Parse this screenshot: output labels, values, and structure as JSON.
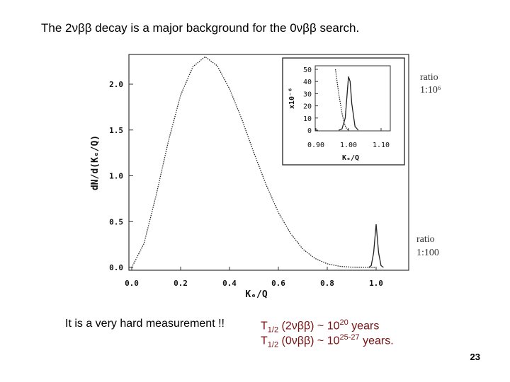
{
  "slide": {
    "title": "The 2νββ decay is a major background for the 0νββ search.",
    "note": "It is a very hard measurement !!",
    "half_life_2v": {
      "prefix": "T",
      "sub": "1/2",
      "mid": " (2νββ) ~ 10",
      "sup": "20",
      "suffix": " years"
    },
    "half_life_0v": {
      "prefix": "T",
      "sub": "1/2",
      "mid": " (0νββ) ~ 10",
      "sup": "25-27",
      "suffix": " years."
    },
    "page_number": "23"
  },
  "chart_data": [
    {
      "type": "line",
      "xlabel": "Kₑ/Q",
      "ylabel": "dN/d(Kₑ/Q)",
      "xlim": [
        0.0,
        1.1
      ],
      "ylim": [
        0.0,
        2.3
      ],
      "xticks": [
        "0.0",
        "0.2",
        "0.4",
        "0.6",
        "0.8",
        "1.0"
      ],
      "yticks": [
        "0.0",
        "0.5",
        "1.0",
        "1.5",
        "2.0"
      ],
      "annotations": [
        {
          "text": [
            "ratio",
            "1:10⁶"
          ],
          "near": "inset peak"
        },
        {
          "text": [
            "ratio",
            "1:100"
          ],
          "near": "main peak at 1.0"
        }
      ],
      "series": [
        {
          "style": "dotted",
          "x": [
            0.0,
            0.05,
            0.1,
            0.15,
            0.2,
            0.25,
            0.3,
            0.35,
            0.4,
            0.45,
            0.5,
            0.55,
            0.6,
            0.65,
            0.7,
            0.75,
            0.8,
            0.85,
            0.9,
            0.95,
            1.0
          ],
          "y": [
            0.0,
            0.26,
            0.79,
            1.38,
            1.88,
            2.19,
            2.3,
            2.2,
            1.95,
            1.62,
            1.25,
            0.9,
            0.6,
            0.37,
            0.2,
            0.097,
            0.039,
            0.012,
            0.0025,
            0.0002,
            0.0
          ]
        },
        {
          "style": "solid",
          "x": [
            0.97,
            0.98,
            0.99,
            0.995,
            1.0,
            1.005,
            1.01,
            1.02,
            1.03
          ],
          "y": [
            0.0,
            0.02,
            0.16,
            0.32,
            0.47,
            0.32,
            0.16,
            0.02,
            0.0
          ]
        }
      ]
    },
    {
      "type": "line",
      "inset": true,
      "xlabel": "Kₑ/Q",
      "ylabel": "x10⁻⁶",
      "xlim": [
        0.88,
        1.12
      ],
      "ylim": [
        0,
        50
      ],
      "xticks": [
        "0.90",
        "1.00",
        "1.10"
      ],
      "yticks": [
        "0",
        "10",
        "20",
        "30",
        "40",
        "50"
      ],
      "series": [
        {
          "style": "dotted",
          "x": [
            0.96,
            0.97,
            0.98,
            0.985,
            0.99,
            0.995,
            1.0
          ],
          "y": [
            50,
            30,
            14,
            8,
            3.5,
            1,
            0
          ]
        },
        {
          "style": "solid",
          "x": [
            0.97,
            0.98,
            0.99,
            1.0,
            1.005,
            1.01,
            1.02,
            1.03
          ],
          "y": [
            0,
            1,
            10,
            44,
            40,
            22,
            3,
            0
          ]
        }
      ]
    }
  ]
}
